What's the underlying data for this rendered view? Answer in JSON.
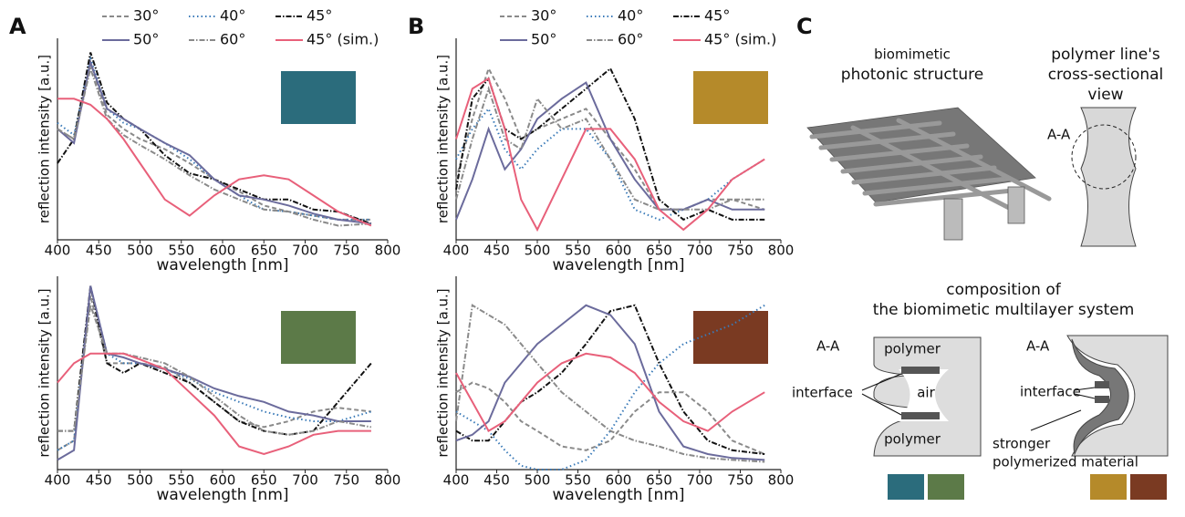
{
  "chart_data": [
    {
      "type": "line",
      "panel": "A",
      "xlabel": "wavelength [nm]",
      "ylabel": "reflection intensity [a.u.]",
      "x": [
        400,
        420,
        440,
        460,
        480,
        500,
        530,
        560,
        590,
        620,
        650,
        680,
        710,
        740,
        780
      ],
      "xlim": [
        400,
        800
      ],
      "xticks": [
        400,
        450,
        500,
        550,
        600,
        650,
        700,
        750,
        800
      ],
      "ylim": [
        0,
        1
      ],
      "series": [
        {
          "name": "30°",
          "color": "#8a8a8a",
          "dash": "5 3",
          "values": [
            0.55,
            0.5,
            0.88,
            0.62,
            0.55,
            0.5,
            0.45,
            0.38,
            0.3,
            0.24,
            0.17,
            0.14,
            0.12,
            0.1,
            0.1
          ]
        },
        {
          "name": "40°",
          "color": "#3a7ab8",
          "dash": "1.5 3",
          "values": [
            0.58,
            0.52,
            0.9,
            0.65,
            0.58,
            0.55,
            0.48,
            0.4,
            0.3,
            0.22,
            0.15,
            0.14,
            0.12,
            0.1,
            0.1
          ]
        },
        {
          "name": "45°",
          "color": "#111111",
          "dash": "6 2 1.5 2",
          "values": [
            0.38,
            0.5,
            0.93,
            0.68,
            0.6,
            0.55,
            0.42,
            0.33,
            0.3,
            0.25,
            0.2,
            0.2,
            0.15,
            0.14,
            0.08
          ]
        },
        {
          "name": "50°",
          "color": "#6b6b9c",
          "dash": "",
          "values": [
            0.55,
            0.48,
            0.88,
            0.65,
            0.6,
            0.55,
            0.48,
            0.42,
            0.3,
            0.22,
            0.2,
            0.17,
            0.13,
            0.1,
            0.08
          ]
        },
        {
          "name": "60°",
          "color": "#8a8a8a",
          "dash": "6 2 1.5 2",
          "values": [
            0.55,
            0.5,
            0.85,
            0.6,
            0.52,
            0.47,
            0.4,
            0.32,
            0.25,
            0.2,
            0.15,
            0.14,
            0.1,
            0.07,
            0.08
          ]
        },
        {
          "name": "45° (sim.)",
          "color": "#e8607a",
          "dash": "",
          "values": [
            0.7,
            0.7,
            0.67,
            0.6,
            0.5,
            0.38,
            0.2,
            0.12,
            0.22,
            0.3,
            0.32,
            0.3,
            0.22,
            0.14,
            0.07
          ]
        }
      ]
    },
    {
      "type": "line",
      "xlabel": "wavelength [nm]",
      "ylabel": "reflection intensity [a.u.]",
      "x": [
        400,
        420,
        440,
        460,
        480,
        500,
        530,
        560,
        590,
        620,
        650,
        680,
        710,
        740,
        780
      ],
      "xlim": [
        400,
        800
      ],
      "xticks": [
        400,
        450,
        500,
        550,
        600,
        650,
        700,
        750,
        800
      ],
      "ylim": [
        0,
        1
      ],
      "series": [
        {
          "color": "#8a8a8a",
          "dash": "5 3",
          "values": [
            0.1,
            0.15,
            0.9,
            0.55,
            0.55,
            0.55,
            0.53,
            0.45,
            0.35,
            0.25,
            0.22,
            0.25,
            0.3,
            0.32,
            0.3
          ]
        },
        {
          "color": "#3a7ab8",
          "dash": "1.5 3",
          "values": [
            0.1,
            0.15,
            0.95,
            0.6,
            0.55,
            0.55,
            0.52,
            0.47,
            0.4,
            0.35,
            0.3,
            0.27,
            0.25,
            0.25,
            0.3
          ]
        },
        {
          "color": "#111111",
          "dash": "6 2 1.5 2",
          "values": [
            0.2,
            0.2,
            0.95,
            0.55,
            0.5,
            0.55,
            0.5,
            0.45,
            0.35,
            0.25,
            0.2,
            0.18,
            0.2,
            0.35,
            0.55
          ]
        },
        {
          "color": "#6b6b9c",
          "dash": "",
          "values": [
            0.05,
            0.1,
            0.95,
            0.6,
            0.58,
            0.55,
            0.52,
            0.48,
            0.42,
            0.38,
            0.35,
            0.3,
            0.28,
            0.25,
            0.25
          ]
        },
        {
          "color": "#8a8a8a",
          "dash": "6 2 1.5 2",
          "values": [
            0.2,
            0.2,
            0.85,
            0.6,
            0.6,
            0.58,
            0.55,
            0.48,
            0.38,
            0.28,
            0.2,
            0.18,
            0.2,
            0.25,
            0.22
          ]
        },
        {
          "color": "#e8607a",
          "dash": "",
          "values": [
            0.45,
            0.55,
            0.6,
            0.6,
            0.6,
            0.57,
            0.52,
            0.4,
            0.28,
            0.12,
            0.08,
            0.12,
            0.18,
            0.2,
            0.2
          ]
        }
      ]
    },
    {
      "type": "line",
      "panel": "B",
      "xlabel": "wavelength [nm]",
      "ylabel": "reflection intensity [a.u.]",
      "x": [
        400,
        420,
        440,
        460,
        480,
        500,
        530,
        560,
        590,
        620,
        650,
        680,
        710,
        740,
        780
      ],
      "xlim": [
        400,
        800
      ],
      "xticks": [
        400,
        450,
        500,
        550,
        600,
        650,
        700,
        750,
        800
      ],
      "ylim": [
        0,
        1
      ],
      "series": [
        {
          "name": "30°",
          "color": "#8a8a8a",
          "dash": "5 3",
          "values": [
            0.3,
            0.6,
            0.85,
            0.7,
            0.5,
            0.55,
            0.6,
            0.65,
            0.5,
            0.35,
            0.15,
            0.15,
            0.2,
            0.2,
            0.15
          ]
        },
        {
          "name": "40°",
          "color": "#3a7ab8",
          "dash": "1.5 3",
          "values": [
            0.4,
            0.55,
            0.65,
            0.45,
            0.35,
            0.45,
            0.55,
            0.55,
            0.4,
            0.15,
            0.1,
            0.15,
            0.2,
            0.3,
            0.4
          ]
        },
        {
          "name": "45°",
          "color": "#111111",
          "dash": "6 2 1.5 2",
          "values": [
            0.25,
            0.7,
            0.8,
            0.55,
            0.5,
            0.55,
            0.65,
            0.75,
            0.85,
            0.6,
            0.2,
            0.1,
            0.15,
            0.1,
            0.1
          ]
        },
        {
          "name": "50°",
          "color": "#6b6b9c",
          "dash": "",
          "values": [
            0.1,
            0.3,
            0.55,
            0.35,
            0.45,
            0.6,
            0.7,
            0.78,
            0.5,
            0.3,
            0.15,
            0.15,
            0.2,
            0.15,
            0.15
          ]
        },
        {
          "name": "60°",
          "color": "#8a8a8a",
          "dash": "6 2 1.5 2",
          "values": [
            0.2,
            0.5,
            0.75,
            0.5,
            0.45,
            0.7,
            0.55,
            0.6,
            0.4,
            0.2,
            0.15,
            0.15,
            0.15,
            0.2,
            0.2
          ]
        },
        {
          "name": "45° (sim.)",
          "color": "#e8607a",
          "dash": "",
          "values": [
            0.5,
            0.75,
            0.8,
            0.55,
            0.2,
            0.05,
            0.3,
            0.55,
            0.55,
            0.4,
            0.15,
            0.05,
            0.15,
            0.3,
            0.4
          ]
        }
      ]
    },
    {
      "type": "line",
      "xlabel": "wavelength [nm]",
      "ylabel": "reflection intensity [a.u.]",
      "x": [
        400,
        420,
        440,
        460,
        480,
        500,
        530,
        560,
        590,
        620,
        650,
        680,
        710,
        740,
        780
      ],
      "xlim": [
        400,
        800
      ],
      "xticks": [
        400,
        450,
        500,
        550,
        600,
        650,
        700,
        750,
        800
      ],
      "ylim": [
        0,
        1
      ],
      "series": [
        {
          "color": "#8a8a8a",
          "dash": "5 3",
          "values": [
            0.4,
            0.45,
            0.42,
            0.35,
            0.25,
            0.2,
            0.12,
            0.1,
            0.15,
            0.3,
            0.4,
            0.4,
            0.3,
            0.15,
            0.08
          ]
        },
        {
          "color": "#3a7ab8",
          "dash": "1.5 3",
          "values": [
            0.3,
            0.25,
            0.2,
            0.1,
            0.02,
            0,
            0,
            0.05,
            0.2,
            0.4,
            0.55,
            0.65,
            0.7,
            0.75,
            0.85
          ]
        },
        {
          "color": "#111111",
          "dash": "6 2 1.5 2",
          "values": [
            0.2,
            0.15,
            0.15,
            0.25,
            0.35,
            0.4,
            0.5,
            0.65,
            0.82,
            0.85,
            0.55,
            0.3,
            0.15,
            0.1,
            0.08
          ]
        },
        {
          "color": "#6b6b9c",
          "dash": "",
          "values": [
            0.15,
            0.18,
            0.25,
            0.45,
            0.55,
            0.65,
            0.75,
            0.85,
            0.8,
            0.65,
            0.3,
            0.12,
            0.08,
            0.06,
            0.05
          ]
        },
        {
          "color": "#8a8a8a",
          "dash": "6 2 1.5 2",
          "values": [
            0.25,
            0.85,
            0.8,
            0.75,
            0.65,
            0.55,
            0.4,
            0.3,
            0.2,
            0.15,
            0.12,
            0.08,
            0.06,
            0.05,
            0.04
          ]
        },
        {
          "color": "#e8607a",
          "dash": "",
          "values": [
            0.5,
            0.35,
            0.2,
            0.25,
            0.35,
            0.45,
            0.55,
            0.6,
            0.58,
            0.5,
            0.35,
            0.25,
            0.2,
            0.3,
            0.4
          ]
        }
      ]
    }
  ],
  "diagram": {
    "panel": "C",
    "structure_title": [
      "biomimetic",
      "photonic structure"
    ],
    "cross_title": [
      "polymer line's",
      "cross-sectional",
      "view"
    ],
    "section_labels": [
      "A-A",
      "A-A",
      "A-A"
    ],
    "composition_title": [
      "composition of",
      "the biomimetic multilayer system"
    ],
    "polymer_labels": [
      "polymer",
      "polymer"
    ],
    "interface_labels": [
      "interface",
      "interface"
    ],
    "air_label": "air",
    "material_label": [
      "stronger",
      "polymerized material"
    ]
  }
}
